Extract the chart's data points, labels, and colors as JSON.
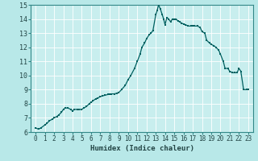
{
  "title": "",
  "xlabel": "Humidex (Indice chaleur)",
  "ylabel": "",
  "xlim": [
    -0.5,
    23.5
  ],
  "ylim": [
    6,
    15
  ],
  "xticks": [
    0,
    1,
    2,
    3,
    4,
    5,
    6,
    7,
    8,
    9,
    10,
    11,
    12,
    13,
    14,
    15,
    16,
    17,
    18,
    19,
    20,
    21,
    22,
    23
  ],
  "yticks": [
    6,
    7,
    8,
    9,
    10,
    11,
    12,
    13,
    14,
    15
  ],
  "background_color": "#b8e8e8",
  "plot_bg_color": "#c8eeee",
  "grid_color": "#ffffff",
  "line_color": "#006060",
  "marker_color": "#006060",
  "spine_color": "#338888",
  "x": [
    0,
    0.3,
    0.6,
    1.0,
    1.2,
    1.5,
    1.8,
    2.0,
    2.3,
    2.5,
    2.8,
    3.0,
    3.2,
    3.5,
    3.8,
    4.0,
    4.2,
    4.5,
    4.7,
    5.0,
    5.2,
    5.5,
    5.8,
    6.0,
    6.2,
    6.5,
    6.7,
    7.0,
    7.2,
    7.5,
    7.8,
    8.0,
    8.2,
    8.5,
    8.8,
    9.0,
    9.3,
    9.7,
    10.0,
    10.3,
    10.7,
    11.0,
    11.3,
    11.5,
    11.8,
    12.0,
    12.3,
    12.5,
    12.7,
    13.0,
    13.15,
    13.3,
    13.5,
    13.7,
    13.85,
    14.0,
    14.2,
    14.4,
    14.6,
    14.8,
    15.0,
    15.2,
    15.4,
    15.6,
    15.8,
    16.0,
    16.2,
    16.5,
    16.8,
    17.0,
    17.2,
    17.5,
    17.8,
    18.0,
    18.3,
    18.5,
    18.8,
    19.0,
    19.3,
    19.5,
    19.8,
    20.0,
    20.3,
    20.5,
    20.8,
    21.0,
    21.3,
    21.5,
    21.8,
    22.0,
    22.2,
    22.5,
    22.8,
    23.0
  ],
  "y": [
    6.3,
    6.2,
    6.3,
    6.5,
    6.6,
    6.8,
    6.9,
    7.0,
    7.1,
    7.2,
    7.4,
    7.6,
    7.7,
    7.7,
    7.6,
    7.5,
    7.6,
    7.6,
    7.6,
    7.6,
    7.7,
    7.8,
    8.0,
    8.1,
    8.2,
    8.35,
    8.4,
    8.5,
    8.55,
    8.6,
    8.65,
    8.7,
    8.7,
    8.7,
    8.75,
    8.8,
    9.0,
    9.3,
    9.7,
    10.0,
    10.5,
    11.0,
    11.5,
    12.0,
    12.3,
    12.6,
    12.9,
    13.0,
    13.2,
    14.3,
    14.6,
    15.0,
    14.7,
    14.3,
    14.0,
    13.6,
    14.1,
    14.0,
    13.8,
    14.0,
    14.0,
    14.0,
    13.85,
    13.8,
    13.7,
    13.65,
    13.6,
    13.5,
    13.5,
    13.5,
    13.5,
    13.5,
    13.4,
    13.1,
    13.0,
    12.5,
    12.3,
    12.2,
    12.1,
    12.0,
    11.8,
    11.5,
    11.0,
    10.5,
    10.5,
    10.3,
    10.2,
    10.2,
    10.2,
    10.5,
    10.3,
    9.0,
    9.0,
    9.0
  ]
}
